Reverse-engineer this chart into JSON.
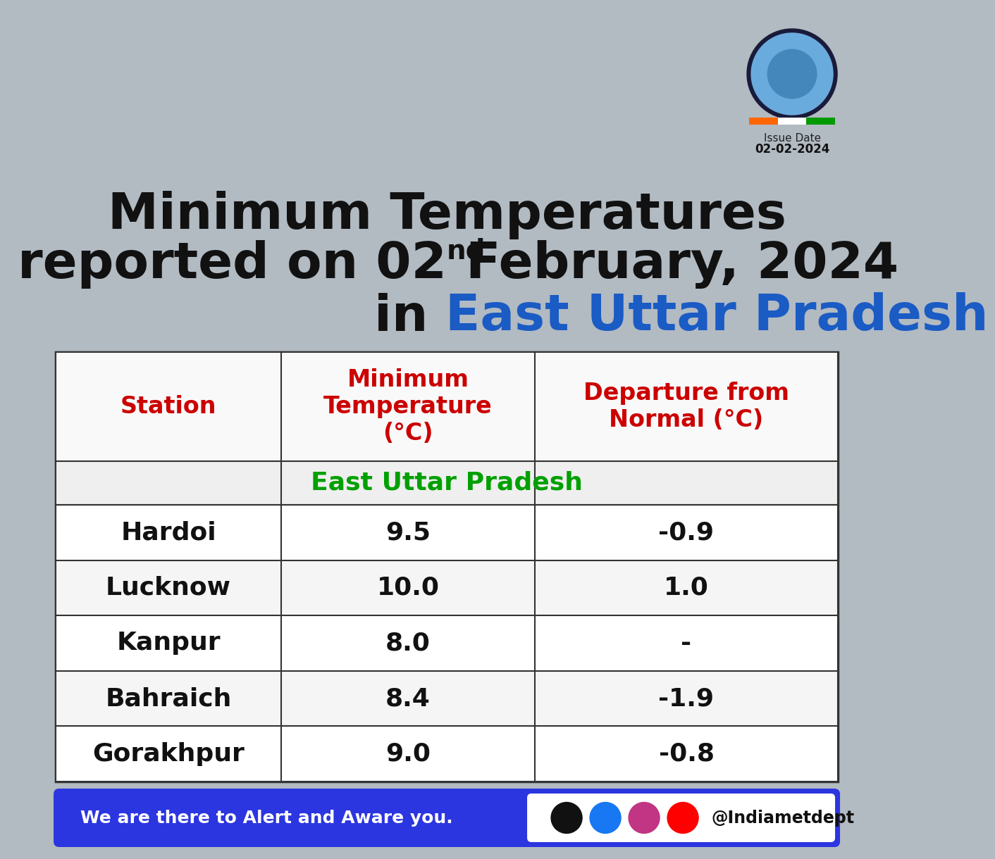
{
  "title_line1": "Minimum Temperatures",
  "title_line2_pre": "reported on 02",
  "title_line2_sup": "nd",
  "title_line2_post": " February, 2024",
  "title_line3_black": "in ",
  "title_line3_blue": "East Uttar Pradesh",
  "issue_date_label": "Issue Date",
  "issue_date": "02-02-2024",
  "col_header0": "Station",
  "col_header1": "Minimum\nTemperature\n(°C)",
  "col_header2": "Departure from\nNormal (°C)",
  "region_label": "East Uttar Pradesh",
  "stations": [
    "Hardoi",
    "Lucknow",
    "Kanpur",
    "Bahraich",
    "Gorakhpur"
  ],
  "min_temps": [
    "9.5",
    "10.0",
    "8.0",
    "8.4",
    "9.0"
  ],
  "departures": [
    "-0.9",
    "1.0",
    "-",
    "-1.9",
    "-0.8"
  ],
  "bg_color": "#b2bac2",
  "table_bg": "#ffffff",
  "header_color": "#cc0000",
  "region_color": "#00a000",
  "title_color": "#111111",
  "title_blue": "#1a5bc4",
  "footer_bg": "#2b35e0",
  "footer_text": "We are there to Alert and Aware you.",
  "footer_handle": "@Indiametdept",
  "icon_colors": [
    "#111111",
    "#1877F2",
    "#C13584",
    "#FF0000"
  ]
}
